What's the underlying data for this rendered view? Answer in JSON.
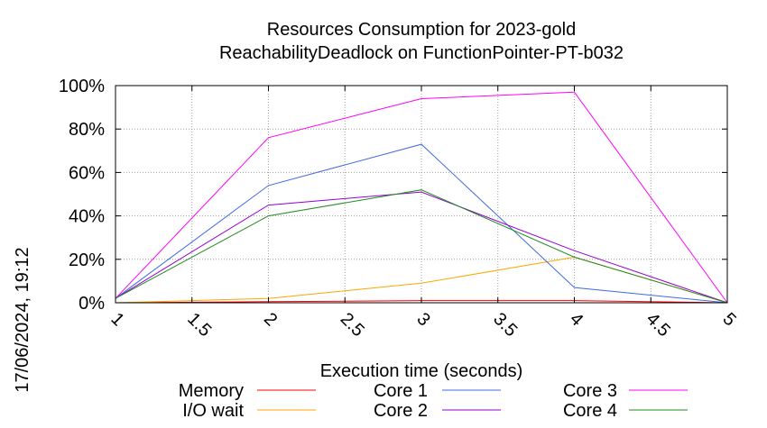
{
  "chart_data": {
    "type": "line",
    "title": "Resources Consumption for 2023-gold",
    "subtitle": "ReachabilityDeadlock on FunctionPointer-PT-b032",
    "xlabel": "Execution time (seconds)",
    "ylabel": "",
    "timestamp": "17/06/2024, 19:12",
    "xlim": [
      1,
      5
    ],
    "ylim": [
      0,
      100
    ],
    "x_ticks": [
      "1",
      "1.5",
      "2",
      "2.5",
      "3",
      "3.5",
      "4",
      "4.5",
      "5"
    ],
    "y_ticks": [
      "0%",
      "20%",
      "40%",
      "60%",
      "80%",
      "100%"
    ],
    "grid": true,
    "legend_position": "bottom",
    "x": [
      1,
      2,
      3,
      4,
      5
    ],
    "series": [
      {
        "name": "Memory",
        "color": "#ff0000",
        "values": [
          0,
          0.5,
          1,
          1,
          0
        ]
      },
      {
        "name": "I/O wait",
        "color": "#ffa500",
        "values": [
          0,
          2,
          9,
          21,
          0
        ]
      },
      {
        "name": "Core 1",
        "color": "#4169e1",
        "values": [
          2,
          54,
          73,
          7,
          0
        ]
      },
      {
        "name": "Core 2",
        "color": "#9400d3",
        "values": [
          2,
          45,
          51,
          24,
          0
        ]
      },
      {
        "name": "Core 3",
        "color": "#ff00ff",
        "values": [
          2,
          76,
          94,
          97,
          0
        ]
      },
      {
        "name": "Core 4",
        "color": "#228b22",
        "values": [
          2,
          40,
          52,
          21,
          0
        ]
      }
    ]
  }
}
